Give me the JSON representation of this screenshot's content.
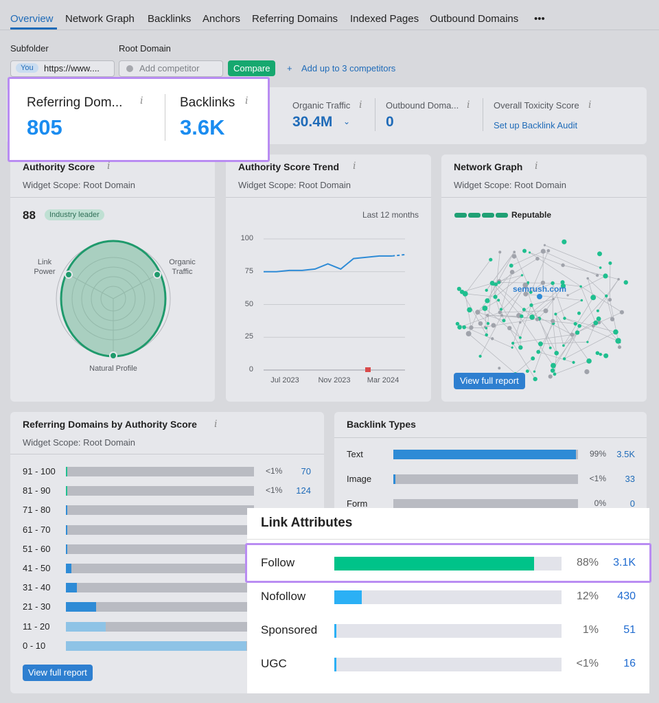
{
  "tabs": [
    "Overview",
    "Network Graph",
    "Backlinks",
    "Anchors",
    "Referring Domains",
    "Indexed Pages",
    "Outbound Domains",
    "•••"
  ],
  "filters": {
    "subfolder": "Subfolder",
    "root_domain": "Root Domain",
    "you": "You",
    "url": "https://www....",
    "competitor_placeholder": "Add competitor",
    "compare": "Compare",
    "add_competitors": "Add up to 3 competitors"
  },
  "metrics": [
    {
      "label": "Referring Dom...",
      "value": "805"
    },
    {
      "label": "Backlinks",
      "value": "3.6K"
    },
    {
      "label": "Organic Traffic",
      "value": "30.4M"
    },
    {
      "label": "Outbound Doma...",
      "value": "0"
    },
    {
      "label": "Overall Toxicity Score",
      "value": "Set up Backlink Audit"
    }
  ],
  "authority_score": {
    "title": "Authority Score",
    "scope": "Widget Scope: Root Domain",
    "score": "88",
    "badge": "Industry leader",
    "axes": [
      "Link Power",
      "Organic Traffic",
      "Natural Profile"
    ]
  },
  "trend": {
    "type": "line",
    "title": "Authority Score Trend",
    "scope": "Widget Scope: Root Domain",
    "period": "Last 12 months",
    "ylim": [
      0,
      100
    ],
    "yticks": [
      0,
      25,
      50,
      75,
      100
    ],
    "x_labels": [
      "Jul 2023",
      "Nov 2023",
      "Mar 2024"
    ],
    "values": [
      75,
      75,
      76,
      76,
      77,
      81,
      77,
      85,
      86,
      87,
      87,
      88
    ],
    "color": "#2e8bd6"
  },
  "network": {
    "title": "Network Graph",
    "scope": "Widget Scope: Root Domain",
    "status": "Reputable",
    "domain": "semrush.com",
    "button": "View full report"
  },
  "ref_domains": {
    "title": "Referring Domains by Authority Score",
    "scope": "Widget Scope: Root Domain",
    "button": "View full report",
    "rows": [
      {
        "range": "91 - 100",
        "share": 0.5,
        "share_label": "<1%",
        "count": 70,
        "color": "#1fbf8f"
      },
      {
        "range": "81 - 90",
        "share": 0.5,
        "share_label": "<1%",
        "count": 124,
        "color": "#1fbf8f"
      },
      {
        "range": "71 - 80",
        "share": 0.3,
        "color": "#2e8bd6"
      },
      {
        "range": "61 - 70",
        "share": 0.3,
        "color": "#2e8bd6"
      },
      {
        "range": "51 - 60",
        "share": 0.3,
        "color": "#2e8bd6"
      },
      {
        "range": "41 - 50",
        "share": 3,
        "color": "#2e8bd6"
      },
      {
        "range": "31 - 40",
        "share": 6,
        "color": "#2e8bd6"
      },
      {
        "range": "21 - 30",
        "share": 16,
        "color": "#2e8bd6"
      },
      {
        "range": "11 - 20",
        "share": 21,
        "color": "#8ec3e6"
      },
      {
        "range": "0 - 10",
        "share": 96,
        "color": "#8ec3e6"
      }
    ]
  },
  "backlink_types": {
    "title": "Backlink Types",
    "rows": [
      {
        "label": "Text",
        "share": 99,
        "share_label": "99%",
        "count": "3.5K"
      },
      {
        "label": "Image",
        "share": 0.5,
        "share_label": "<1%",
        "count": 33
      },
      {
        "label": "Form",
        "share": 0,
        "share_label": "0%",
        "count": 0
      }
    ]
  },
  "link_attributes": {
    "title": "Link Attributes",
    "rows": [
      {
        "label": "Follow",
        "share": 88,
        "share_label": "88%",
        "count": "3.1K",
        "color": "#00c389"
      },
      {
        "label": "Nofollow",
        "share": 12,
        "share_label": "12%",
        "count": 430,
        "color": "#2bb0f5"
      },
      {
        "label": "Sponsored",
        "share": 1,
        "share_label": "1%",
        "count": 51,
        "color": "#2bb0f5"
      },
      {
        "label": "UGC",
        "share": 0.5,
        "share_label": "<1%",
        "count": 16,
        "color": "#2bb0f5"
      }
    ]
  }
}
